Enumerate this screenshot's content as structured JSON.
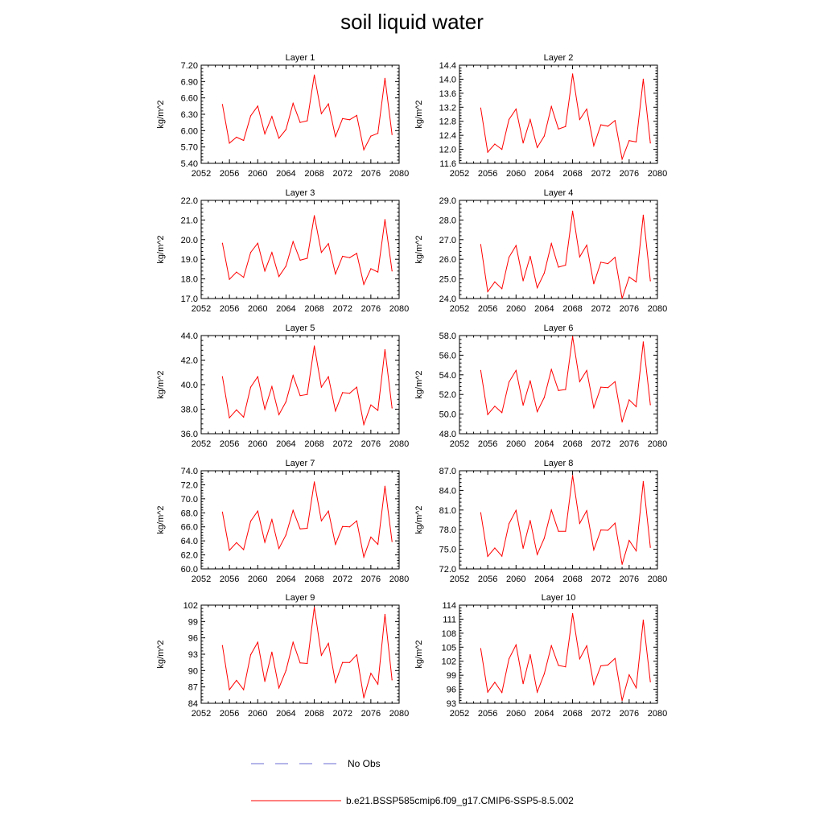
{
  "title": "soil liquid water",
  "legend": {
    "obs_label": "No Obs",
    "obs_color": "#6b6bd6",
    "model_label": "b.e21.BSSP585cmip6.f09_g17.CMIP6-SSP5-8.5.002",
    "model_color": "#ff0000"
  },
  "chart_data": [
    {
      "type": "line",
      "title": "Layer 1",
      "ylabel": "kg/m^2",
      "xlim": [
        2052,
        2080
      ],
      "xticks": [
        2052,
        2056,
        2060,
        2064,
        2068,
        2072,
        2076,
        2080
      ],
      "ylim": [
        5.4,
        7.2
      ],
      "yticks": [
        "5.40",
        "5.70",
        "6.00",
        "6.30",
        "6.60",
        "6.90",
        "7.20"
      ],
      "x": [
        2055,
        2056,
        2057,
        2058,
        2059,
        2060,
        2061,
        2062,
        2063,
        2064,
        2065,
        2066,
        2067,
        2068,
        2069,
        2070,
        2071,
        2072,
        2073,
        2074,
        2075,
        2076,
        2077,
        2078,
        2079
      ],
      "series": [
        {
          "values": [
            6.48,
            5.77,
            5.88,
            5.82,
            6.27,
            6.45,
            5.94,
            6.26,
            5.86,
            6.02,
            6.5,
            6.15,
            6.18,
            7.02,
            6.31,
            6.49,
            5.89,
            6.22,
            6.2,
            6.28,
            5.65,
            5.9,
            5.95,
            6.96,
            5.93
          ],
          "color": "#ff0000"
        }
      ]
    },
    {
      "type": "line",
      "title": "Layer 2",
      "ylabel": "kg/m^2",
      "xlim": [
        2052,
        2080
      ],
      "xticks": [
        2052,
        2056,
        2060,
        2064,
        2068,
        2072,
        2076,
        2080
      ],
      "ylim": [
        11.6,
        14.4
      ],
      "yticks": [
        "11.6",
        "12.0",
        "12.4",
        "12.8",
        "13.2",
        "13.6",
        "14.0",
        "14.4"
      ],
      "x": [
        2055,
        2056,
        2057,
        2058,
        2059,
        2060,
        2061,
        2062,
        2063,
        2064,
        2065,
        2066,
        2067,
        2068,
        2069,
        2070,
        2071,
        2072,
        2073,
        2074,
        2075,
        2076,
        2077,
        2078,
        2079
      ],
      "series": [
        {
          "values": [
            13.18,
            11.92,
            12.15,
            12.0,
            12.85,
            13.15,
            12.18,
            12.85,
            12.05,
            12.38,
            13.22,
            12.58,
            12.65,
            14.15,
            12.85,
            13.15,
            12.1,
            12.7,
            12.66,
            12.82,
            11.72,
            12.25,
            12.21,
            14.0,
            12.18
          ],
          "color": "#ff0000"
        }
      ]
    },
    {
      "type": "line",
      "title": "Layer 3",
      "ylabel": "kg/m^2",
      "xlim": [
        2052,
        2080
      ],
      "xticks": [
        2052,
        2056,
        2060,
        2064,
        2068,
        2072,
        2076,
        2080
      ],
      "ylim": [
        17.0,
        22.0
      ],
      "yticks": [
        "17.0",
        "18.0",
        "19.0",
        "20.0",
        "21.0",
        "22.0"
      ],
      "x": [
        2055,
        2056,
        2057,
        2058,
        2059,
        2060,
        2061,
        2062,
        2063,
        2064,
        2065,
        2066,
        2067,
        2068,
        2069,
        2070,
        2071,
        2072,
        2073,
        2074,
        2075,
        2076,
        2077,
        2078,
        2079
      ],
      "series": [
        {
          "values": [
            19.82,
            17.98,
            18.35,
            18.08,
            19.35,
            19.82,
            18.4,
            19.35,
            18.12,
            18.65,
            19.9,
            18.95,
            19.05,
            21.22,
            19.35,
            19.8,
            18.25,
            19.15,
            19.08,
            19.3,
            17.72,
            18.52,
            18.35,
            21.02,
            18.4
          ],
          "color": "#ff0000"
        }
      ]
    },
    {
      "type": "line",
      "title": "Layer 4",
      "ylabel": "kg/m^2",
      "xlim": [
        2052,
        2080
      ],
      "xticks": [
        2052,
        2056,
        2060,
        2064,
        2068,
        2072,
        2076,
        2080
      ],
      "ylim": [
        24.0,
        29.0
      ],
      "yticks": [
        "24.0",
        "25.0",
        "26.0",
        "27.0",
        "28.0",
        "29.0"
      ],
      "x": [
        2055,
        2056,
        2057,
        2058,
        2059,
        2060,
        2061,
        2062,
        2063,
        2064,
        2065,
        2066,
        2067,
        2068,
        2069,
        2070,
        2071,
        2072,
        2073,
        2074,
        2075,
        2076,
        2077,
        2078,
        2079
      ],
      "series": [
        {
          "values": [
            26.75,
            24.35,
            24.85,
            24.5,
            26.1,
            26.7,
            24.9,
            26.15,
            24.55,
            25.3,
            26.8,
            25.6,
            25.7,
            28.45,
            26.12,
            26.72,
            24.75,
            25.85,
            25.78,
            26.1,
            24.0,
            25.1,
            24.85,
            28.25,
            24.9
          ],
          "color": "#ff0000"
        }
      ]
    },
    {
      "type": "line",
      "title": "Layer 5",
      "ylabel": "kg/m^2",
      "xlim": [
        2052,
        2080
      ],
      "xticks": [
        2052,
        2056,
        2060,
        2064,
        2068,
        2072,
        2076,
        2080
      ],
      "ylim": [
        36.0,
        44.0
      ],
      "yticks": [
        "36.0",
        "38.0",
        "40.0",
        "42.0",
        "44.0"
      ],
      "x": [
        2055,
        2056,
        2057,
        2058,
        2059,
        2060,
        2061,
        2062,
        2063,
        2064,
        2065,
        2066,
        2067,
        2068,
        2069,
        2070,
        2071,
        2072,
        2073,
        2074,
        2075,
        2076,
        2077,
        2078,
        2079
      ],
      "series": [
        {
          "values": [
            40.65,
            37.3,
            37.95,
            37.35,
            39.8,
            40.65,
            38.0,
            39.85,
            37.55,
            38.6,
            40.75,
            39.1,
            39.2,
            43.15,
            39.8,
            40.65,
            37.85,
            39.35,
            39.3,
            39.8,
            36.75,
            38.35,
            37.9,
            42.85,
            38.1
          ],
          "color": "#ff0000"
        }
      ]
    },
    {
      "type": "line",
      "title": "Layer 6",
      "ylabel": "kg/m^2",
      "xlim": [
        2052,
        2080
      ],
      "xticks": [
        2052,
        2056,
        2060,
        2064,
        2068,
        2072,
        2076,
        2080
      ],
      "ylim": [
        48.0,
        58.0
      ],
      "yticks": [
        "48.0",
        "50.0",
        "52.0",
        "54.0",
        "56.0",
        "58.0"
      ],
      "x": [
        2055,
        2056,
        2057,
        2058,
        2059,
        2060,
        2061,
        2062,
        2063,
        2064,
        2065,
        2066,
        2067,
        2068,
        2069,
        2070,
        2071,
        2072,
        2073,
        2074,
        2075,
        2076,
        2077,
        2078,
        2079
      ],
      "series": [
        {
          "values": [
            54.45,
            49.95,
            50.8,
            50.15,
            53.25,
            54.45,
            50.9,
            53.4,
            50.25,
            51.7,
            54.55,
            52.4,
            52.5,
            57.9,
            53.3,
            54.45,
            50.65,
            52.75,
            52.7,
            53.3,
            49.2,
            51.45,
            50.75,
            57.35,
            50.95
          ],
          "color": "#ff0000"
        }
      ]
    },
    {
      "type": "line",
      "title": "Layer 7",
      "ylabel": "kg/m^2",
      "xlim": [
        2052,
        2080
      ],
      "xticks": [
        2052,
        2056,
        2060,
        2064,
        2068,
        2072,
        2076,
        2080
      ],
      "ylim": [
        60.0,
        74.0
      ],
      "yticks": [
        "60.0",
        "62.0",
        "64.0",
        "66.0",
        "68.0",
        "70.0",
        "72.0",
        "74.0"
      ],
      "x": [
        2055,
        2056,
        2057,
        2058,
        2059,
        2060,
        2061,
        2062,
        2063,
        2064,
        2065,
        2066,
        2067,
        2068,
        2069,
        2070,
        2071,
        2072,
        2073,
        2074,
        2075,
        2076,
        2077,
        2078,
        2079
      ],
      "series": [
        {
          "values": [
            68.1,
            62.65,
            63.75,
            62.75,
            66.8,
            68.25,
            63.8,
            67.05,
            62.9,
            64.85,
            68.35,
            65.7,
            65.8,
            72.4,
            66.85,
            68.25,
            63.5,
            66.05,
            66.0,
            66.85,
            61.7,
            64.55,
            63.5,
            71.8,
            63.9
          ],
          "color": "#ff0000"
        }
      ]
    },
    {
      "type": "line",
      "title": "Layer 8",
      "ylabel": "kg/m^2",
      "xlim": [
        2052,
        2080
      ],
      "xticks": [
        2052,
        2056,
        2060,
        2064,
        2068,
        2072,
        2076,
        2080
      ],
      "ylim": [
        72.0,
        87.0
      ],
      "yticks": [
        "72.0",
        "75.0",
        "78.0",
        "81.0",
        "84.0",
        "87.0"
      ],
      "x": [
        2055,
        2056,
        2057,
        2058,
        2059,
        2060,
        2061,
        2062,
        2063,
        2064,
        2065,
        2066,
        2067,
        2068,
        2069,
        2070,
        2071,
        2072,
        2073,
        2074,
        2075,
        2076,
        2077,
        2078,
        2079
      ],
      "series": [
        {
          "values": [
            80.6,
            73.9,
            75.2,
            73.95,
            78.9,
            80.95,
            75.15,
            79.4,
            74.2,
            76.7,
            81.0,
            77.75,
            77.75,
            86.3,
            78.95,
            80.9,
            74.9,
            77.95,
            77.9,
            79.0,
            72.7,
            76.35,
            74.75,
            85.35,
            75.3
          ],
          "color": "#ff0000"
        }
      ]
    },
    {
      "type": "line",
      "title": "Layer 9",
      "ylabel": "kg/m^2",
      "xlim": [
        2052,
        2080
      ],
      "xticks": [
        2052,
        2056,
        2060,
        2064,
        2068,
        2072,
        2076,
        2080
      ],
      "ylim": [
        84,
        102
      ],
      "yticks": [
        "84",
        "87",
        "90",
        "93",
        "96",
        "99",
        "102"
      ],
      "x": [
        2055,
        2056,
        2057,
        2058,
        2059,
        2060,
        2061,
        2062,
        2063,
        2064,
        2065,
        2066,
        2067,
        2068,
        2069,
        2070,
        2071,
        2072,
        2073,
        2074,
        2075,
        2076,
        2077,
        2078,
        2079
      ],
      "series": [
        {
          "values": [
            94.6,
            86.5,
            88.2,
            86.5,
            92.9,
            95.2,
            88.0,
            93.4,
            86.8,
            90.0,
            95.2,
            91.4,
            91.3,
            101.6,
            92.8,
            95.0,
            87.8,
            91.5,
            91.5,
            92.9,
            85.0,
            89.5,
            87.5,
            100.3,
            88.3
          ],
          "color": "#ff0000"
        }
      ]
    },
    {
      "type": "line",
      "title": "Layer 10",
      "ylabel": "kg/m^2",
      "xlim": [
        2052,
        2080
      ],
      "xticks": [
        2052,
        2056,
        2060,
        2064,
        2068,
        2072,
        2076,
        2080
      ],
      "ylim": [
        93,
        114
      ],
      "yticks": [
        "93",
        "96",
        "99",
        "102",
        "105",
        "108",
        "111",
        "114"
      ],
      "x": [
        2055,
        2056,
        2057,
        2058,
        2059,
        2060,
        2061,
        2062,
        2063,
        2064,
        2065,
        2066,
        2067,
        2068,
        2069,
        2070,
        2071,
        2072,
        2073,
        2074,
        2075,
        2076,
        2077,
        2078,
        2079
      ],
      "series": [
        {
          "values": [
            104.7,
            95.4,
            97.5,
            95.3,
            102.5,
            105.5,
            97.2,
            103.4,
            95.4,
            99.3,
            105.3,
            101.1,
            100.8,
            112.2,
            102.5,
            105.3,
            97.0,
            101.0,
            101.2,
            102.6,
            93.6,
            99.1,
            96.3,
            110.8,
            97.6
          ],
          "color": "#ff0000"
        }
      ]
    }
  ]
}
